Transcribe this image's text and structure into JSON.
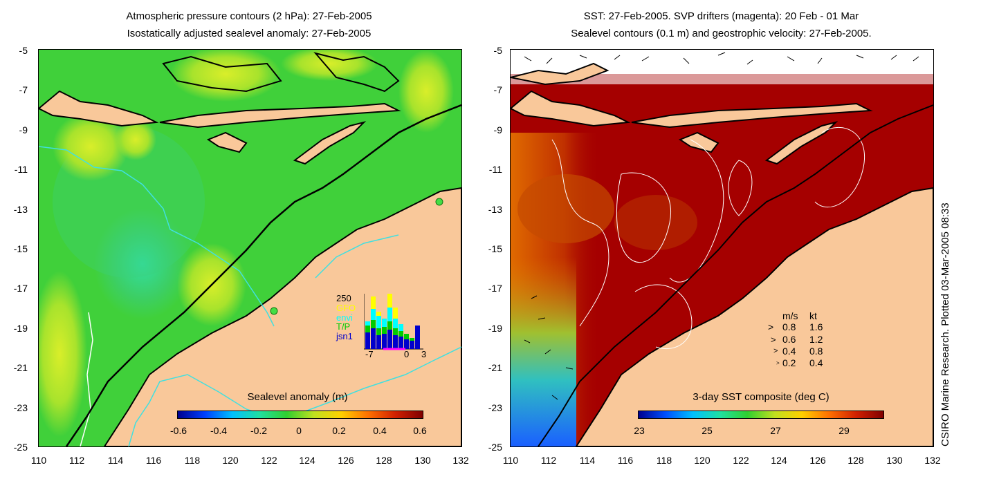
{
  "left_panel": {
    "title_line1": "Atmospheric pressure contours (2 hPa): 27-Feb-2005",
    "title_line2": "Isostatically adjusted sealevel anomaly: 27-Feb-2005",
    "y_ticks": [
      "-5",
      "-7",
      "-9",
      "-11",
      "-13",
      "-15",
      "-17",
      "-19",
      "-21",
      "-23",
      "-25"
    ],
    "x_ticks": [
      "110",
      "112",
      "114",
      "116",
      "118",
      "120",
      "122",
      "124",
      "126",
      "128",
      "130",
      "132"
    ],
    "colorbar_label": "Sealevel anomaly (m)",
    "colorbar_ticks": [
      "-0.6",
      "-0.4",
      "-0.2",
      "0",
      "0.2",
      "0.4",
      "0.6"
    ],
    "inset": {
      "y_top_label": "250",
      "legend": [
        {
          "label": "GFO",
          "color": "#ffff00"
        },
        {
          "label": "envi",
          "color": "#00ffff"
        },
        {
          "label": "T/P",
          "color": "#00cc00"
        },
        {
          "label": "jsn1",
          "color": "#0000cc"
        }
      ],
      "x_ticks": [
        "-7",
        "0",
        "3"
      ]
    }
  },
  "right_panel": {
    "title_line1": "SST: 27-Feb-2005. SVP drifters (magenta): 20 Feb - 01 Mar",
    "title_line2": "Sealevel contours (0.1 m) and geostrophic velocity: 27-Feb-2005.",
    "y_ticks": [
      "-5",
      "-7",
      "-9",
      "-11",
      "-13",
      "-15",
      "-17",
      "-19",
      "-21",
      "-23",
      "-25"
    ],
    "x_ticks": [
      "110",
      "112",
      "114",
      "116",
      "118",
      "120",
      "122",
      "124",
      "126",
      "128",
      "130",
      "132"
    ],
    "colorbar_label": "3-day SST composite (deg C)",
    "colorbar_ticks": [
      "23",
      "25",
      "27",
      "29"
    ],
    "velocity_legend": {
      "header_ms": "m/s",
      "header_kt": "kt",
      "rows": [
        {
          "ms": "0.8",
          "kt": "1.6"
        },
        {
          "ms": "0.6",
          "kt": "1.2"
        },
        {
          "ms": "0.4",
          "kt": "0.8"
        },
        {
          "ms": "0.2",
          "kt": "0.4"
        }
      ]
    }
  },
  "credit": "CSIRO Marine Research. Plotted 03-Mar-2005 08:33",
  "colors": {
    "land": "#f9c89a",
    "sla_green": "#2ecc2e",
    "sst_red": "#a50000",
    "coast": "#000000"
  }
}
